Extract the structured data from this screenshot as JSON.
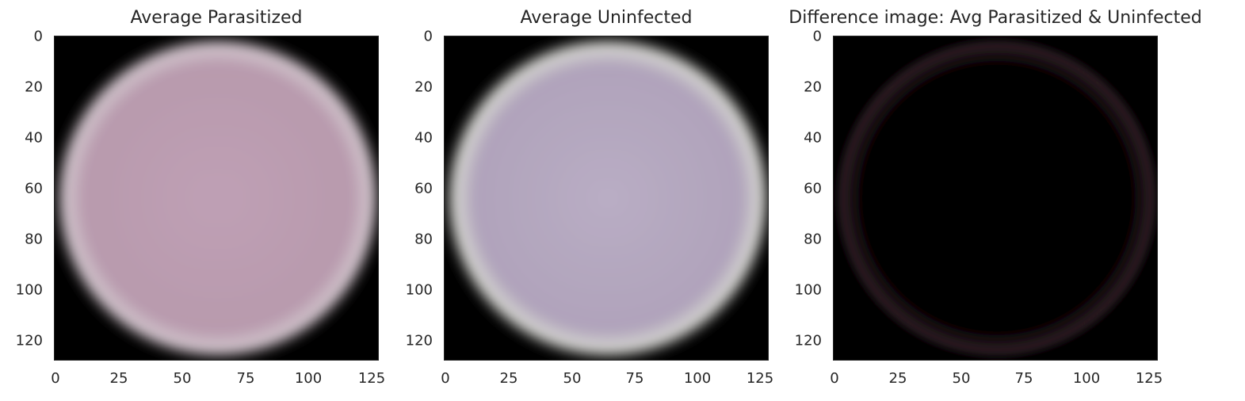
{
  "panels": [
    {
      "title": "Average Parasitized",
      "cell_color": "#b89aad",
      "cell_center_color": "#bfa0b5",
      "edge_color": "#d0c3cb",
      "background": "#000000",
      "x_ticks": [
        "0",
        "25",
        "50",
        "75",
        "100",
        "125"
      ],
      "y_ticks": [
        "0",
        "20",
        "40",
        "60",
        "80",
        "100",
        "120"
      ],
      "x_range": [
        0,
        128
      ],
      "y_range": [
        0,
        128
      ]
    },
    {
      "title": "Average Uninfected",
      "cell_color": "#b0a3bb",
      "cell_center_color": "#b9adc4",
      "edge_color": "#d3d3cf",
      "background": "#000000",
      "x_ticks": [
        "0",
        "25",
        "50",
        "75",
        "100",
        "125"
      ],
      "y_ticks": [
        "0",
        "20",
        "40",
        "60",
        "80",
        "100",
        "120"
      ],
      "x_range": [
        0,
        128
      ],
      "y_range": [
        0,
        128
      ]
    },
    {
      "title": "Difference image: Avg Parasitized & Uninfected",
      "cell_color": "#060102",
      "cell_center_color": "#000000",
      "edge_color": "#2a1c22",
      "background": "#000000",
      "x_ticks": [
        "0",
        "25",
        "50",
        "75",
        "100",
        "125"
      ],
      "y_ticks": [
        "0",
        "20",
        "40",
        "60",
        "80",
        "100",
        "120"
      ],
      "x_range": [
        0,
        128
      ],
      "y_range": [
        0,
        128
      ]
    }
  ]
}
